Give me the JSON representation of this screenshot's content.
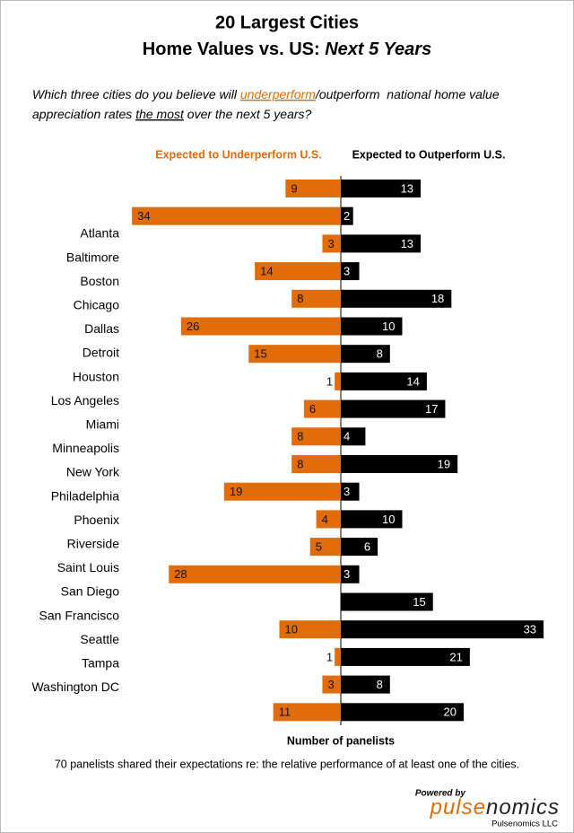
{
  "chart_data": {
    "type": "diverging_bar",
    "title": [
      "20 Largest Cities",
      "Home Values vs. US: ",
      "Next 5 Years"
    ],
    "subtitle": [
      "Which three cities do you believe will ",
      "underperform",
      "/outperform  national home value",
      "appreciation rates ",
      "the most",
      " over the next 5 years?"
    ],
    "categories": [
      "Atlanta",
      "Baltimore",
      "Boston",
      "Chicago",
      "Dallas",
      "Detroit",
      "Houston",
      "Los Angeles",
      "Miami",
      "Minneapolis",
      "New York",
      "Philadelphia",
      "Phoenix",
      "Riverside",
      "Saint Louis",
      "San Diego",
      "San Francisco",
      "Seattle",
      "Tampa",
      "Washington DC"
    ],
    "series": [
      {
        "name": "Expected to Underperform U.S.",
        "color": "#e36c0a",
        "values": [
          9,
          34,
          3,
          14,
          8,
          26,
          15,
          1,
          6,
          8,
          8,
          19,
          4,
          5,
          28,
          0,
          10,
          1,
          3,
          11
        ]
      },
      {
        "name": "Expected to Outperform U.S.",
        "color": "#000000",
        "values": [
          13,
          2,
          13,
          3,
          18,
          10,
          8,
          14,
          17,
          4,
          19,
          3,
          10,
          6,
          3,
          15,
          33,
          21,
          8,
          20
        ]
      }
    ],
    "xlabel": "Number of panelists",
    "note": "70 panelists shared their expectations re: the relative performance of at least one of the cities.",
    "logo": [
      "Powered by",
      "pulse",
      "nomics",
      "Pulsenomics LLC"
    ]
  }
}
